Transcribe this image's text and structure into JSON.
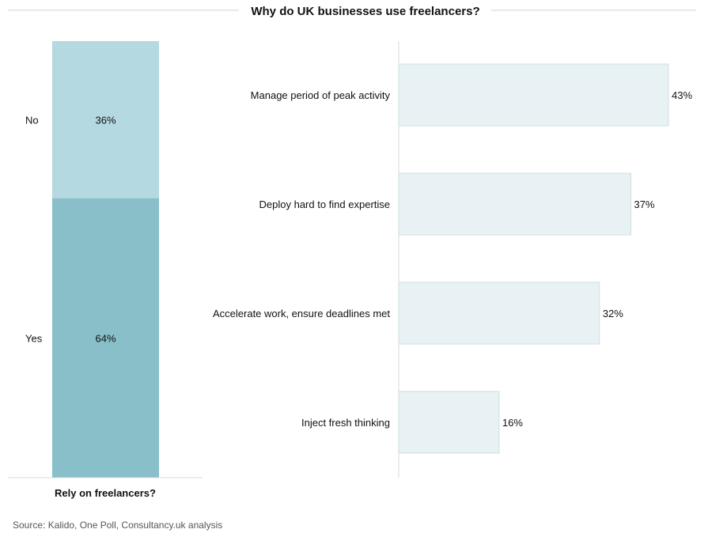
{
  "chart_data": [
    {
      "type": "bar",
      "orientation": "stacked-vertical",
      "title": "Rely on freelancers?",
      "categories": [
        "No",
        "Yes"
      ],
      "values": [
        36,
        64
      ],
      "value_labels": [
        "36%",
        "64%"
      ],
      "colors": [
        "#b4d9e0",
        "#88bfc9"
      ],
      "ylim": [
        0,
        100
      ]
    },
    {
      "type": "bar",
      "orientation": "horizontal",
      "title": "Why do UK businesses use freelancers?",
      "categories": [
        "Manage period of peak activity",
        "Deploy hard to find expertise",
        "Accelerate work, ensure deadlines met",
        "Inject fresh thinking"
      ],
      "values": [
        43,
        37,
        32,
        16
      ],
      "value_labels": [
        "43%",
        "37%",
        "32%",
        "16%"
      ],
      "bar_color": "#e8f1f3",
      "bar_border": "#cfdfe3",
      "xlim": [
        0,
        50
      ]
    }
  ],
  "source": "Source: Kalido, One Poll, Consultancy.uk analysis"
}
